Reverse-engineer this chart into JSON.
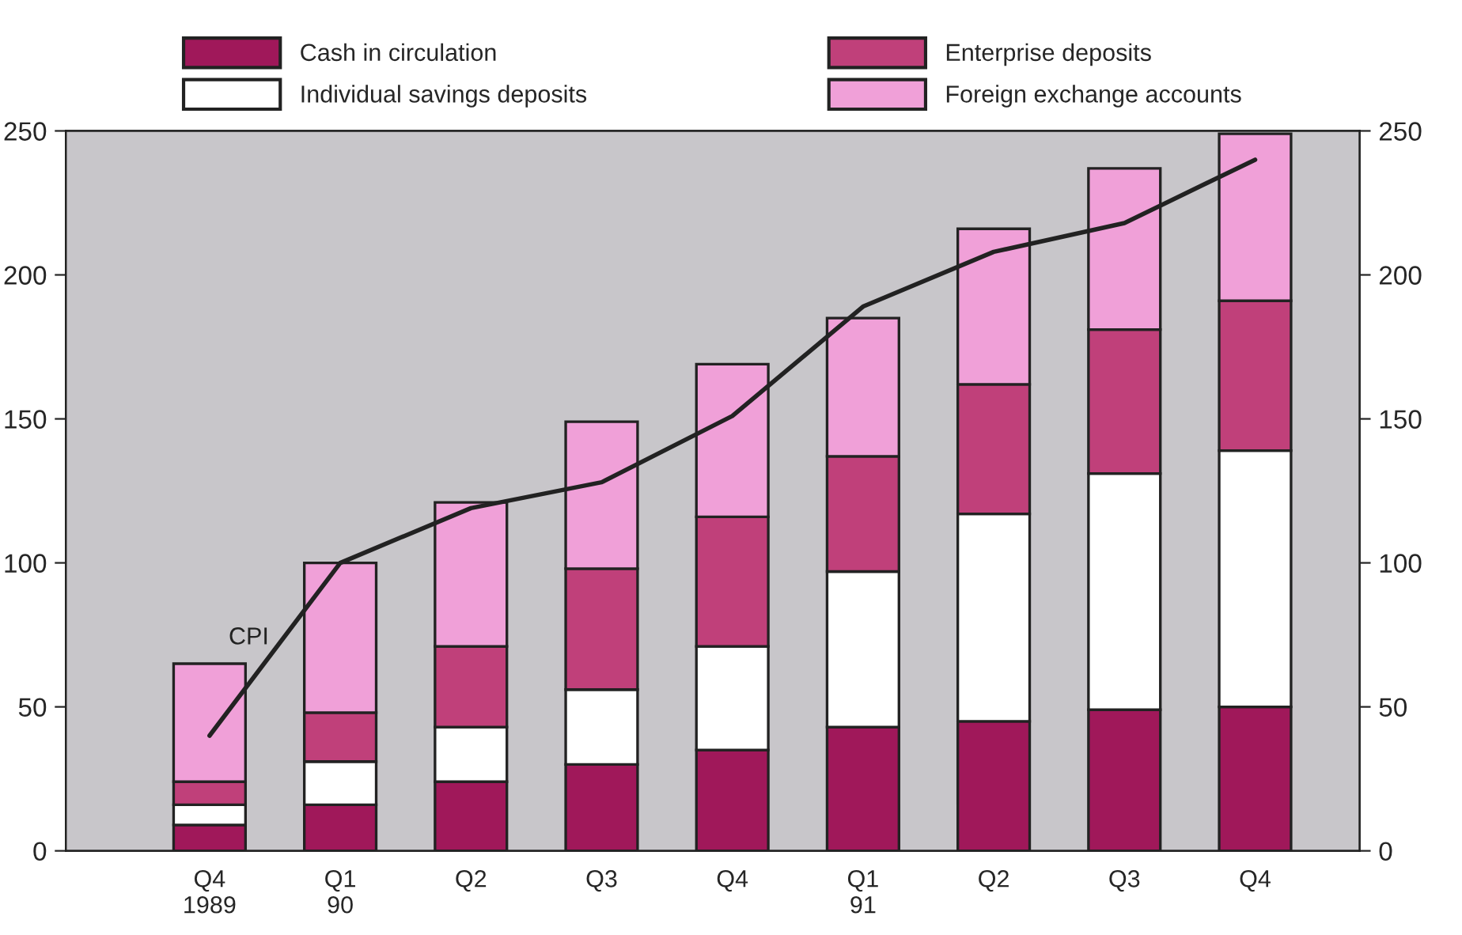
{
  "chart_data": {
    "type": "bar",
    "stacked": true,
    "categories": [
      "Q4\n1989",
      "Q1\n90",
      "Q2",
      "Q3",
      "Q4",
      "Q1\n91",
      "Q2",
      "Q3",
      "Q4"
    ],
    "series": [
      {
        "name": "Cash in circulation",
        "color": "#a0185a",
        "values": [
          9,
          16,
          24,
          30,
          35,
          43,
          45,
          49,
          50
        ]
      },
      {
        "name": "Individual savings deposits",
        "color": "#ffffff",
        "values": [
          7,
          15,
          19,
          26,
          36,
          54,
          72,
          82,
          89
        ]
      },
      {
        "name": "Enterprise deposits",
        "color": "#c0407a",
        "values": [
          8,
          17,
          28,
          42,
          45,
          40,
          45,
          50,
          52
        ]
      },
      {
        "name": "Foreign exchange accounts",
        "color": "#f0a0d8",
        "values": [
          41,
          52,
          50,
          51,
          53,
          48,
          54,
          56,
          58
        ]
      },
      {
        "name": "CPI",
        "type": "line",
        "color": "#222222",
        "values": [
          40,
          100,
          119,
          128,
          151,
          189,
          208,
          218,
          240
        ]
      }
    ],
    "ylim": [
      0,
      250
    ],
    "yticks": [
      0,
      50,
      100,
      150,
      200,
      250
    ],
    "y2lim": [
      0,
      250
    ],
    "y2ticks": [
      0,
      50,
      100,
      150,
      200,
      250
    ],
    "legend": "top",
    "grid": false
  }
}
